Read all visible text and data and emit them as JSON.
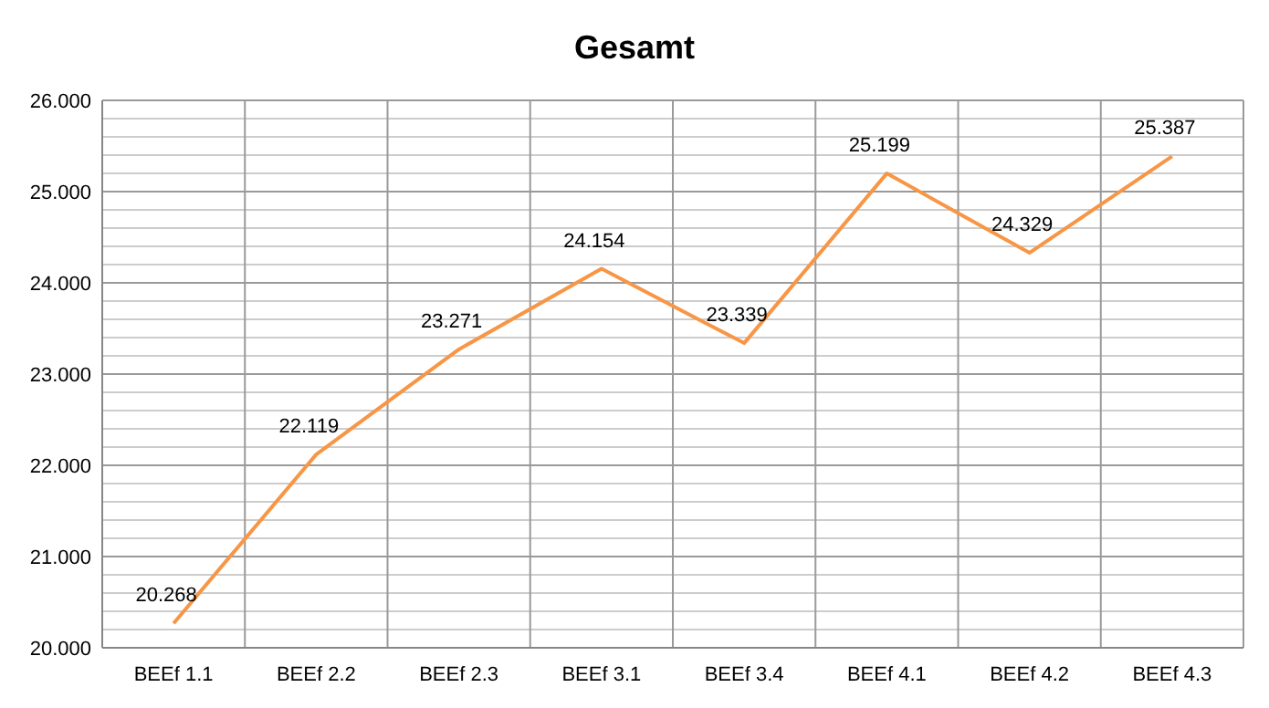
{
  "chart_data": {
    "type": "line",
    "title": "Gesamt",
    "categories": [
      "BEEf 1.1",
      "BEEf 2.2",
      "BEEf 2.3",
      "BEEf 3.1",
      "BEEf 3.4",
      "BEEf 4.1",
      "BEEf 4.2",
      "BEEf 4.3"
    ],
    "series": [
      {
        "color": "#f79646",
        "values": [
          20.268,
          22.119,
          23.271,
          24.154,
          23.339,
          25.199,
          24.329,
          25.387
        ],
        "value_labels": [
          "20.268",
          "22.119",
          "23.271",
          "24.154",
          "23.339",
          "25.199",
          "24.329",
          "25.387"
        ]
      }
    ],
    "ylim": [
      20,
      26
    ],
    "yticks": [
      {
        "value": 20,
        "label": "20.000"
      },
      {
        "value": 20.2,
        "label": null
      },
      {
        "value": 20.4,
        "label": null
      },
      {
        "value": 20.6,
        "label": null
      },
      {
        "value": 20.8,
        "label": null
      },
      {
        "value": 21,
        "label": "21.000"
      },
      {
        "value": 21.2,
        "label": null
      },
      {
        "value": 21.4,
        "label": null
      },
      {
        "value": 21.6,
        "label": null
      },
      {
        "value": 21.8,
        "label": null
      },
      {
        "value": 22,
        "label": "22.000"
      },
      {
        "value": 22.2,
        "label": null
      },
      {
        "value": 22.4,
        "label": null
      },
      {
        "value": 22.6,
        "label": null
      },
      {
        "value": 22.8,
        "label": null
      },
      {
        "value": 23,
        "label": "23.000"
      },
      {
        "value": 23.2,
        "label": null
      },
      {
        "value": 23.4,
        "label": null
      },
      {
        "value": 23.6,
        "label": null
      },
      {
        "value": 23.8,
        "label": null
      },
      {
        "value": 24,
        "label": "24.000"
      },
      {
        "value": 24.2,
        "label": null
      },
      {
        "value": 24.4,
        "label": null
      },
      {
        "value": 24.6,
        "label": null
      },
      {
        "value": 24.8,
        "label": null
      },
      {
        "value": 25,
        "label": "25.000"
      },
      {
        "value": 25.2,
        "label": null
      },
      {
        "value": 25.4,
        "label": null
      },
      {
        "value": 25.6,
        "label": null
      },
      {
        "value": 25.8,
        "label": null
      },
      {
        "value": 26,
        "label": "26.000"
      }
    ],
    "grid": true,
    "marker": "none",
    "line_style": "solid"
  }
}
